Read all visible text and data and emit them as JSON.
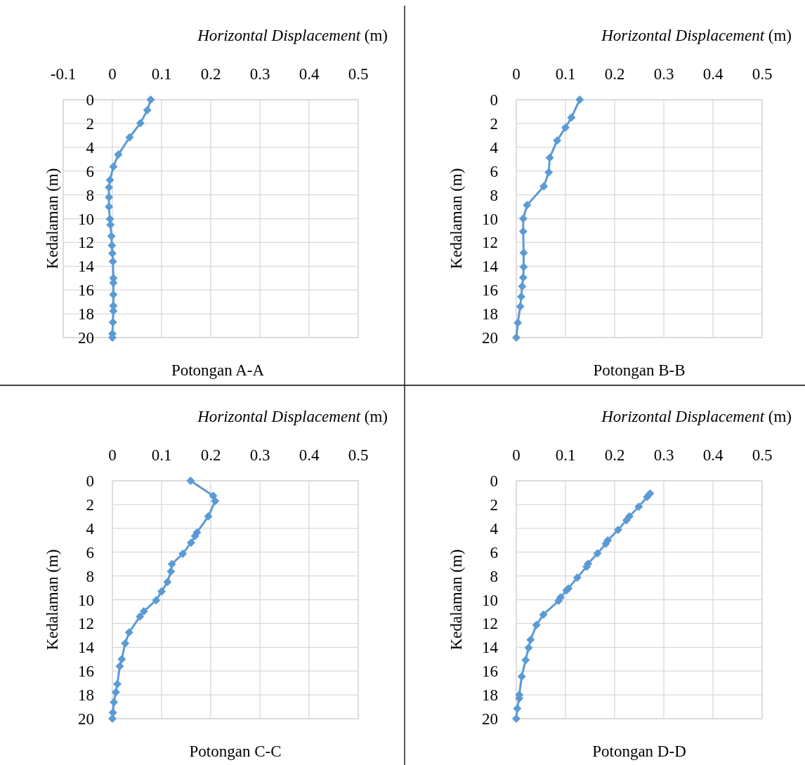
{
  "chart_data": [
    {
      "type": "line",
      "title": "Potongan A-A",
      "xlabel": "Horizontal Displacement (m)",
      "ylabel": "Kedalaman (m)",
      "xlim": [
        -0.1,
        0.5
      ],
      "xticks": [
        -0.1,
        0,
        0.1,
        0.2,
        0.3,
        0.4,
        0.5
      ],
      "ylim": [
        20,
        0
      ],
      "yticks": [
        0,
        2,
        4,
        6,
        8,
        10,
        12,
        14,
        16,
        18,
        20
      ],
      "grid": true,
      "marker": "diamond",
      "line_style": "solid",
      "series": [
        {
          "color": "#5b9bd5",
          "x": [
            0.078,
            0.071,
            0.057,
            0.035,
            0.012,
            0.002,
            -0.005,
            -0.007,
            -0.007,
            -0.007,
            -0.005,
            -0.004,
            -0.002,
            -0.001,
            0,
            0.001,
            0.002,
            0.002,
            0.002,
            0.002,
            0.002,
            0.001,
            0,
            0
          ],
          "values": [
            0,
            0.88,
            1.97,
            3.17,
            4.62,
            5.64,
            6.75,
            7.37,
            8.2,
            8.99,
            10.03,
            10.52,
            11.47,
            12.25,
            12.92,
            13.6,
            15.0,
            15.4,
            16.38,
            17.33,
            17.76,
            18.72,
            19.67,
            20
          ]
        }
      ]
    },
    {
      "type": "line",
      "title": "Potongan B-B",
      "xlabel": "Horizontal Displacement (m)",
      "ylabel": "Kedalaman (m)",
      "xlim": [
        0,
        0.5
      ],
      "xticks": [
        0,
        0.1,
        0.2,
        0.3,
        0.4,
        0.5
      ],
      "ylim": [
        20,
        0
      ],
      "yticks": [
        0,
        2,
        4,
        6,
        8,
        10,
        12,
        14,
        16,
        18,
        20
      ],
      "grid": true,
      "marker": "diamond",
      "line_style": "solid",
      "series": [
        {
          "color": "#5b9bd5",
          "x": [
            0.129,
            0.112,
            0.1,
            0.083,
            0.068,
            0.066,
            0.056,
            0.022,
            0.014,
            0.014,
            0.015,
            0.015,
            0.014,
            0.012,
            0.01,
            0.008,
            0.003,
            0
          ],
          "values": [
            0,
            1.51,
            2.35,
            3.43,
            4.88,
            6.1,
            7.29,
            8.86,
            10.0,
            11.08,
            12.88,
            14.06,
            14.96,
            15.69,
            16.57,
            17.39,
            18.76,
            20
          ]
        }
      ]
    },
    {
      "type": "line",
      "title": "Potongan C-C",
      "xlabel": "Horizontal Displacement (m)",
      "ylabel": "Kedalaman (m)",
      "xlim": [
        0,
        0.5
      ],
      "xticks": [
        0,
        0.1,
        0.2,
        0.3,
        0.4,
        0.5
      ],
      "ylim": [
        20,
        0
      ],
      "yticks": [
        0,
        2,
        4,
        6,
        8,
        10,
        12,
        14,
        16,
        18,
        20
      ],
      "grid": true,
      "marker": "diamond",
      "line_style": "solid",
      "series": [
        {
          "color": "#5b9bd5",
          "x": [
            0.159,
            0.205,
            0.209,
            0.195,
            0.172,
            0.168,
            0.16,
            0.143,
            0.121,
            0.119,
            0.112,
            0.1,
            0.089,
            0.064,
            0.056,
            0.034,
            0.026,
            0.019,
            0.015,
            0.01,
            0.007,
            0.003,
            0.001,
            0
          ],
          "values": [
            0,
            1.27,
            1.71,
            3.0,
            4.35,
            4.65,
            5.2,
            6.14,
            7.0,
            7.63,
            8.51,
            9.31,
            10.04,
            10.98,
            11.41,
            12.75,
            13.67,
            15.0,
            15.59,
            17.1,
            17.78,
            18.61,
            19.49,
            20
          ]
        }
      ]
    },
    {
      "type": "line",
      "title": "Potongan D-D",
      "xlabel": "Horizontal Displacement (m)",
      "ylabel": "Kedalaman (m)",
      "xlim": [
        0,
        0.5
      ],
      "xticks": [
        0,
        0.1,
        0.2,
        0.3,
        0.4,
        0.5
      ],
      "ylim": [
        20,
        0
      ],
      "yticks": [
        0,
        2,
        4,
        6,
        8,
        10,
        12,
        14,
        16,
        18,
        20
      ],
      "grid": true,
      "marker": "diamond",
      "line_style": "solid",
      "series": [
        {
          "color": "#5b9bd5",
          "x": [
            0.272,
            0.266,
            0.249,
            0.23,
            0.224,
            0.207,
            0.186,
            0.182,
            0.165,
            0.146,
            0.143,
            0.124,
            0.106,
            0.102,
            0.09,
            0.086,
            0.055,
            0.041,
            0.029,
            0.025,
            0.019,
            0.011,
            0.006,
            0.006,
            0.002,
            0
          ],
          "values": [
            1.08,
            1.36,
            2.18,
            2.99,
            3.32,
            4.13,
            5.01,
            5.29,
            6.1,
            6.98,
            7.22,
            8.14,
            9.05,
            9.22,
            9.81,
            10.09,
            11.25,
            12.13,
            13.37,
            14.04,
            15.08,
            16.46,
            17.99,
            18.29,
            19.15,
            20
          ]
        }
      ]
    }
  ]
}
